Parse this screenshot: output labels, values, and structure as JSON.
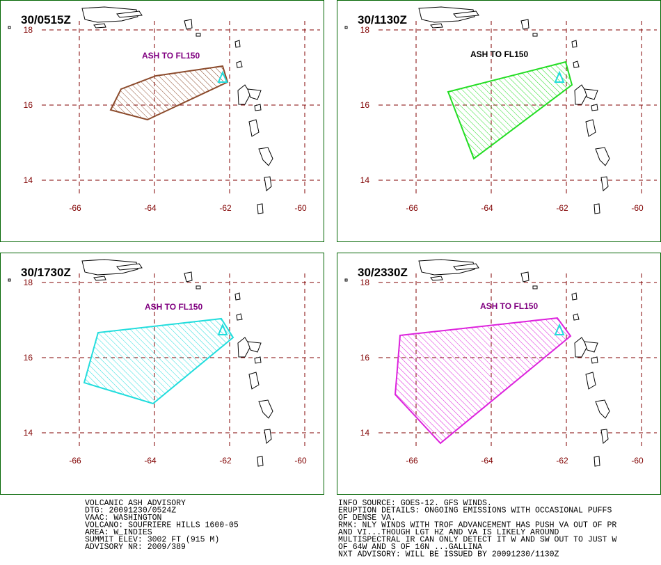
{
  "map": {
    "lat_ticks": [
      18,
      16,
      14
    ],
    "lon_ticks": [
      -66,
      -64,
      -62,
      -60
    ],
    "panels": [
      {
        "time": "30/0515Z",
        "label": "ASH TO FL150",
        "color": "#8b4a2b",
        "label_color": "#800080"
      },
      {
        "time": "30/1130Z",
        "label": "ASH TO FL150",
        "color": "#22dd22",
        "label_color": "#000000"
      },
      {
        "time": "30/1730Z",
        "label": "ASH TO FL150",
        "color": "#22dddd",
        "label_color": "#800080"
      },
      {
        "time": "30/2330Z",
        "label": "ASH TO FL150",
        "color": "#dd22dd",
        "label_color": "#800080"
      }
    ]
  },
  "advisory": {
    "left": [
      "VOLCANIC ASH ADVISORY",
      "DTG: 20091230/0524Z",
      "VAAC: WASHINGTON",
      "VOLCANO: SOUFRIERE HILLS 1600-05",
      "AREA: W_INDIES",
      "SUMMIT ELEV: 3002 FT (915 M)",
      "ADVISORY NR: 2009/389"
    ],
    "right": [
      "INFO SOURCE: GOES-12. GFS WINDS.",
      "ERUPTION DETAILS: ONGOING EMISSIONS WITH OCCASIONAL PUFFS",
      "OF DENSE VA.",
      "RMK: NLY WINDS WITH TROF ADVANCEMENT HAS PUSH VA OUT OF PR",
      "AND VI...THOUGH LGT HZ AND VA IS LIKELY AROUND",
      "MULTISPECTRAL IR CAN ONLY DETECT IT W AND SW OUT TO JUST W",
      "OF 64W AND S OF 16N ...GALLINA",
      "NXT ADVISORY: WILL BE ISSUED BY 20091230/1130Z"
    ]
  }
}
